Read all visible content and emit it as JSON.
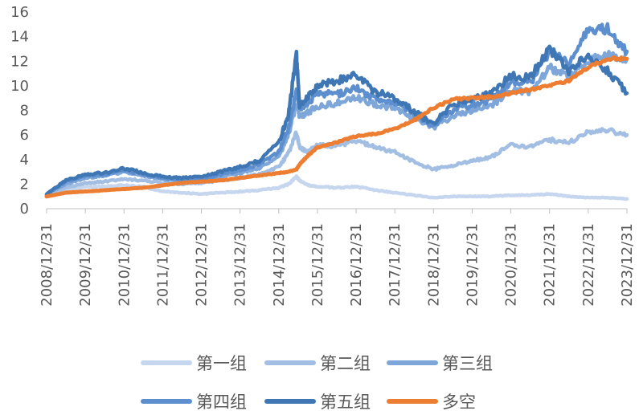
{
  "chart_data": {
    "type": "line",
    "title": "",
    "xlabel": "",
    "ylabel": "",
    "ylim": [
      0,
      16
    ],
    "yticks": [
      0,
      2,
      4,
      6,
      8,
      10,
      12,
      14,
      16
    ],
    "x_tick_labels": [
      "2008/12/31",
      "2009/12/31",
      "2010/12/31",
      "2011/12/31",
      "2012/12/31",
      "2013/12/31",
      "2014/12/31",
      "2015/12/31",
      "2016/12/31",
      "2017/12/31",
      "2018/12/31",
      "2019/12/31",
      "2020/12/31",
      "2021/12/31",
      "2022/12/31",
      "2023/12/31"
    ],
    "grid": {
      "horizontal": false,
      "vertical": false
    },
    "legend": "bottom",
    "x": [
      "2008/12/31",
      "2009/06/30",
      "2009/12/31",
      "2010/06/30",
      "2010/12/31",
      "2011/06/30",
      "2011/12/31",
      "2012/06/30",
      "2012/12/31",
      "2013/06/30",
      "2013/12/31",
      "2014/06/30",
      "2014/12/31",
      "2015/03/31",
      "2015/06/15",
      "2015/07/15",
      "2015/09/30",
      "2015/12/31",
      "2016/06/30",
      "2016/12/31",
      "2017/06/30",
      "2017/12/31",
      "2018/06/30",
      "2018/12/31",
      "2019/06/30",
      "2019/12/31",
      "2020/06/30",
      "2020/12/31",
      "2021/06/30",
      "2021/12/31",
      "2022/06/30",
      "2022/12/31",
      "2023/06/30",
      "2023/12/31"
    ],
    "series": [
      {
        "name": "第一组",
        "color": "#c5d6ee",
        "values": [
          1.1,
          1.5,
          1.8,
          1.8,
          1.9,
          1.8,
          1.4,
          1.3,
          1.2,
          1.3,
          1.4,
          1.5,
          1.7,
          2.0,
          2.6,
          2.3,
          1.9,
          1.8,
          1.7,
          1.8,
          1.5,
          1.3,
          1.1,
          0.9,
          1.0,
          1.0,
          1.0,
          1.1,
          1.1,
          1.2,
          1.0,
          0.9,
          0.9,
          0.8
        ]
      },
      {
        "name": "第二组",
        "color": "#a3bee3",
        "values": [
          1.1,
          1.7,
          2.1,
          2.2,
          2.4,
          2.3,
          2.1,
          2.0,
          2.1,
          2.3,
          2.5,
          2.8,
          3.4,
          4.5,
          6.2,
          5.0,
          4.6,
          5.2,
          5.1,
          5.5,
          5.0,
          4.6,
          3.8,
          3.2,
          3.5,
          3.9,
          4.2,
          5.2,
          5.0,
          5.6,
          5.4,
          6.2,
          6.4,
          6.0
        ]
      },
      {
        "name": "第三组",
        "color": "#7ea6d8",
        "values": [
          1.2,
          2.0,
          2.5,
          2.7,
          3.0,
          2.7,
          2.4,
          2.3,
          2.3,
          2.6,
          2.9,
          3.3,
          4.2,
          6.0,
          8.5,
          7.5,
          7.8,
          8.3,
          8.6,
          9.0,
          8.5,
          8.2,
          7.4,
          6.6,
          7.5,
          8.0,
          8.4,
          9.6,
          9.5,
          11.5,
          10.8,
          12.0,
          12.5,
          12.2
        ]
      },
      {
        "name": "第四组",
        "color": "#5d8fcf",
        "values": [
          1.2,
          2.2,
          2.7,
          2.8,
          3.1,
          2.8,
          2.5,
          2.4,
          2.4,
          2.8,
          3.1,
          3.6,
          4.6,
          6.5,
          9.6,
          8.2,
          8.6,
          9.4,
          9.3,
          9.8,
          9.0,
          8.6,
          7.6,
          6.8,
          8.0,
          8.5,
          8.8,
          10.3,
          10.2,
          12.8,
          11.8,
          14.5,
          14.6,
          12.8
        ]
      },
      {
        "name": "第五组",
        "color": "#3f76b4",
        "values": [
          1.2,
          2.3,
          2.8,
          2.9,
          3.3,
          2.9,
          2.6,
          2.5,
          2.6,
          3.0,
          3.4,
          3.9,
          5.4,
          7.6,
          12.5,
          8.4,
          9.0,
          10.0,
          10.4,
          10.9,
          9.5,
          9.0,
          7.9,
          6.9,
          8.5,
          9.0,
          9.4,
          10.8,
          10.7,
          13.0,
          11.2,
          12.5,
          11.2,
          9.4
        ]
      },
      {
        "name": "多空",
        "color": "#ed7d31",
        "values": [
          1.0,
          1.3,
          1.4,
          1.5,
          1.6,
          1.7,
          1.9,
          2.1,
          2.2,
          2.3,
          2.5,
          2.7,
          2.9,
          3.0,
          3.2,
          3.6,
          4.3,
          5.0,
          5.4,
          5.9,
          6.1,
          6.5,
          7.2,
          8.2,
          8.9,
          9.0,
          9.1,
          9.4,
          9.7,
          10.0,
          10.4,
          11.5,
          12.2,
          12.2
        ]
      }
    ]
  }
}
